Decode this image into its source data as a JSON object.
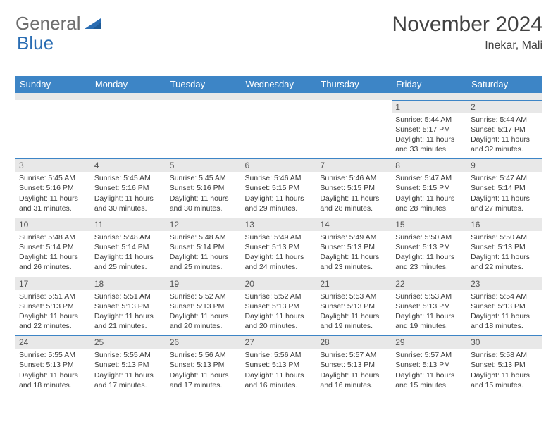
{
  "brand": {
    "part1": "General",
    "part2": "Blue"
  },
  "title": "November 2024",
  "location": "Inekar, Mali",
  "colors": {
    "header_bg": "#3d85c6",
    "header_text": "#ffffff",
    "daynum_bg": "#e8e8e8",
    "border": "#3d85c6",
    "body_text": "#3a3a3a",
    "title_text": "#424242",
    "logo_gray": "#6e6e6e",
    "logo_blue": "#2a6db3"
  },
  "dow": [
    "Sunday",
    "Monday",
    "Tuesday",
    "Wednesday",
    "Thursday",
    "Friday",
    "Saturday"
  ],
  "weeks": [
    [
      null,
      null,
      null,
      null,
      null,
      {
        "n": "1",
        "sunrise": "5:44 AM",
        "sunset": "5:17 PM",
        "daylight": "11 hours and 33 minutes."
      },
      {
        "n": "2",
        "sunrise": "5:44 AM",
        "sunset": "5:17 PM",
        "daylight": "11 hours and 32 minutes."
      }
    ],
    [
      {
        "n": "3",
        "sunrise": "5:45 AM",
        "sunset": "5:16 PM",
        "daylight": "11 hours and 31 minutes."
      },
      {
        "n": "4",
        "sunrise": "5:45 AM",
        "sunset": "5:16 PM",
        "daylight": "11 hours and 30 minutes."
      },
      {
        "n": "5",
        "sunrise": "5:45 AM",
        "sunset": "5:16 PM",
        "daylight": "11 hours and 30 minutes."
      },
      {
        "n": "6",
        "sunrise": "5:46 AM",
        "sunset": "5:15 PM",
        "daylight": "11 hours and 29 minutes."
      },
      {
        "n": "7",
        "sunrise": "5:46 AM",
        "sunset": "5:15 PM",
        "daylight": "11 hours and 28 minutes."
      },
      {
        "n": "8",
        "sunrise": "5:47 AM",
        "sunset": "5:15 PM",
        "daylight": "11 hours and 28 minutes."
      },
      {
        "n": "9",
        "sunrise": "5:47 AM",
        "sunset": "5:14 PM",
        "daylight": "11 hours and 27 minutes."
      }
    ],
    [
      {
        "n": "10",
        "sunrise": "5:48 AM",
        "sunset": "5:14 PM",
        "daylight": "11 hours and 26 minutes."
      },
      {
        "n": "11",
        "sunrise": "5:48 AM",
        "sunset": "5:14 PM",
        "daylight": "11 hours and 25 minutes."
      },
      {
        "n": "12",
        "sunrise": "5:48 AM",
        "sunset": "5:14 PM",
        "daylight": "11 hours and 25 minutes."
      },
      {
        "n": "13",
        "sunrise": "5:49 AM",
        "sunset": "5:13 PM",
        "daylight": "11 hours and 24 minutes."
      },
      {
        "n": "14",
        "sunrise": "5:49 AM",
        "sunset": "5:13 PM",
        "daylight": "11 hours and 23 minutes."
      },
      {
        "n": "15",
        "sunrise": "5:50 AM",
        "sunset": "5:13 PM",
        "daylight": "11 hours and 23 minutes."
      },
      {
        "n": "16",
        "sunrise": "5:50 AM",
        "sunset": "5:13 PM",
        "daylight": "11 hours and 22 minutes."
      }
    ],
    [
      {
        "n": "17",
        "sunrise": "5:51 AM",
        "sunset": "5:13 PM",
        "daylight": "11 hours and 22 minutes."
      },
      {
        "n": "18",
        "sunrise": "5:51 AM",
        "sunset": "5:13 PM",
        "daylight": "11 hours and 21 minutes."
      },
      {
        "n": "19",
        "sunrise": "5:52 AM",
        "sunset": "5:13 PM",
        "daylight": "11 hours and 20 minutes."
      },
      {
        "n": "20",
        "sunrise": "5:52 AM",
        "sunset": "5:13 PM",
        "daylight": "11 hours and 20 minutes."
      },
      {
        "n": "21",
        "sunrise": "5:53 AM",
        "sunset": "5:13 PM",
        "daylight": "11 hours and 19 minutes."
      },
      {
        "n": "22",
        "sunrise": "5:53 AM",
        "sunset": "5:13 PM",
        "daylight": "11 hours and 19 minutes."
      },
      {
        "n": "23",
        "sunrise": "5:54 AM",
        "sunset": "5:13 PM",
        "daylight": "11 hours and 18 minutes."
      }
    ],
    [
      {
        "n": "24",
        "sunrise": "5:55 AM",
        "sunset": "5:13 PM",
        "daylight": "11 hours and 18 minutes."
      },
      {
        "n": "25",
        "sunrise": "5:55 AM",
        "sunset": "5:13 PM",
        "daylight": "11 hours and 17 minutes."
      },
      {
        "n": "26",
        "sunrise": "5:56 AM",
        "sunset": "5:13 PM",
        "daylight": "11 hours and 17 minutes."
      },
      {
        "n": "27",
        "sunrise": "5:56 AM",
        "sunset": "5:13 PM",
        "daylight": "11 hours and 16 minutes."
      },
      {
        "n": "28",
        "sunrise": "5:57 AM",
        "sunset": "5:13 PM",
        "daylight": "11 hours and 16 minutes."
      },
      {
        "n": "29",
        "sunrise": "5:57 AM",
        "sunset": "5:13 PM",
        "daylight": "11 hours and 15 minutes."
      },
      {
        "n": "30",
        "sunrise": "5:58 AM",
        "sunset": "5:13 PM",
        "daylight": "11 hours and 15 minutes."
      }
    ]
  ],
  "labels": {
    "sunrise": "Sunrise:",
    "sunset": "Sunset:",
    "daylight": "Daylight:"
  }
}
